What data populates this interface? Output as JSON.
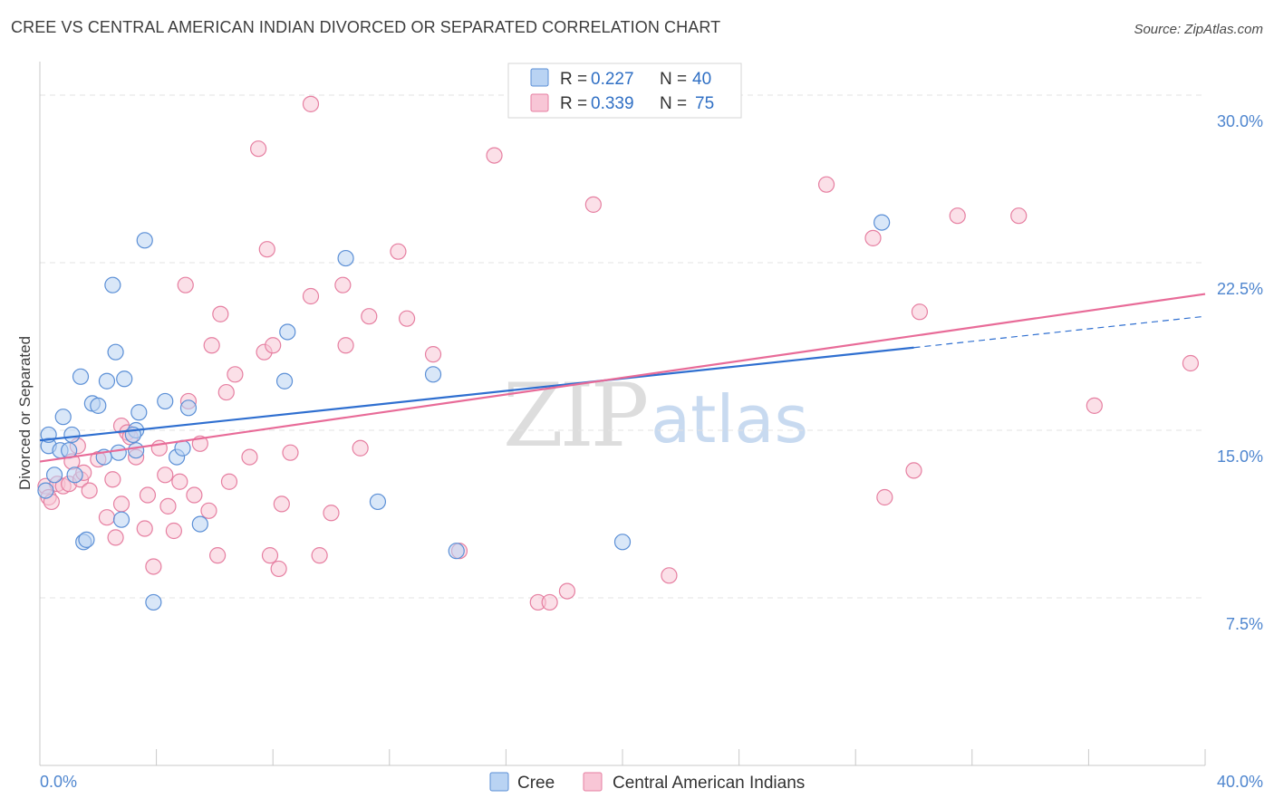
{
  "title": "CREE VS CENTRAL AMERICAN INDIAN DIVORCED OR SEPARATED CORRELATION CHART",
  "source": "Source: ZipAtlas.com",
  "colors": {
    "cree_fill": "#b9d3f3",
    "cree_stroke": "#5b8fd6",
    "cree_line": "#2f6fd0",
    "cai_fill": "#f8c6d6",
    "cai_stroke": "#e67fa1",
    "cai_line": "#e86b98",
    "tick_text": "#4f86cf",
    "grid": "#e3e3e3"
  },
  "legend": {
    "rows": [
      {
        "r_label": "R = ",
        "r_value": "0.227",
        "n_label": "N = ",
        "n_value": "40"
      },
      {
        "r_label": "R = ",
        "r_value": "0.339",
        "n_label": "N = ",
        "n_value": "75"
      }
    ]
  },
  "watermark": {
    "zip": "ZIP",
    "atlas": "atlas"
  },
  "chart_data": {
    "type": "scatter",
    "title": "CREE VS CENTRAL AMERICAN INDIAN DIVORCED OR SEPARATED CORRELATION CHART",
    "xlabel": "",
    "ylabel": "Divorced or Separated",
    "xlim": [
      0,
      40
    ],
    "ylim": [
      0,
      31.5
    ],
    "y_ticks": [
      7.5,
      15.0,
      22.5,
      30.0
    ],
    "y_tick_labels": [
      "7.5%",
      "15.0%",
      "22.5%",
      "30.0%"
    ],
    "x_tick_labels": [
      "0.0%",
      "40.0%"
    ],
    "grid": true,
    "series": [
      {
        "name": "Cree",
        "r": 0.227,
        "n": 40,
        "trend": {
          "x0": 0,
          "y0": 14.55,
          "x1": 30.0,
          "y1": 18.7,
          "dashed_to_x": 40,
          "dashed_to_y": 20.1
        },
        "points": [
          [
            0.3,
            14.3
          ],
          [
            0.3,
            14.8
          ],
          [
            0.5,
            13.0
          ],
          [
            0.7,
            14.1
          ],
          [
            0.8,
            15.6
          ],
          [
            1.0,
            14.1
          ],
          [
            1.1,
            14.8
          ],
          [
            1.2,
            13.0
          ],
          [
            1.4,
            17.4
          ],
          [
            1.5,
            10.0
          ],
          [
            1.6,
            10.1
          ],
          [
            1.8,
            16.2
          ],
          [
            2.0,
            16.1
          ],
          [
            2.2,
            13.8
          ],
          [
            2.3,
            17.2
          ],
          [
            2.5,
            21.5
          ],
          [
            2.6,
            18.5
          ],
          [
            2.7,
            14.0
          ],
          [
            2.8,
            11.0
          ],
          [
            2.9,
            17.3
          ],
          [
            3.3,
            14.1
          ],
          [
            3.3,
            15.0
          ],
          [
            3.4,
            15.8
          ],
          [
            3.6,
            23.5
          ],
          [
            3.9,
            7.3
          ],
          [
            4.3,
            16.3
          ],
          [
            4.7,
            13.8
          ],
          [
            4.9,
            14.2
          ],
          [
            5.1,
            16.0
          ],
          [
            5.5,
            10.8
          ],
          [
            8.4,
            17.2
          ],
          [
            8.5,
            19.4
          ],
          [
            10.5,
            22.7
          ],
          [
            11.6,
            11.8
          ],
          [
            13.5,
            17.5
          ],
          [
            14.3,
            9.6
          ],
          [
            20.0,
            10.0
          ],
          [
            28.9,
            24.3
          ],
          [
            3.2,
            14.8
          ],
          [
            0.2,
            12.3
          ]
        ]
      },
      {
        "name": "Central American Indians",
        "r": 0.339,
        "n": 75,
        "trend": {
          "x0": 0,
          "y0": 13.6,
          "x1": 40,
          "y1": 21.1
        },
        "points": [
          [
            0.2,
            12.5
          ],
          [
            0.3,
            12.0
          ],
          [
            0.4,
            11.8
          ],
          [
            0.6,
            12.6
          ],
          [
            0.8,
            12.5
          ],
          [
            1.0,
            12.6
          ],
          [
            1.1,
            13.6
          ],
          [
            1.3,
            14.3
          ],
          [
            1.4,
            12.8
          ],
          [
            1.5,
            13.1
          ],
          [
            1.7,
            12.3
          ],
          [
            2.0,
            13.7
          ],
          [
            2.3,
            11.1
          ],
          [
            2.5,
            12.8
          ],
          [
            2.6,
            10.2
          ],
          [
            2.8,
            11.7
          ],
          [
            2.8,
            15.2
          ],
          [
            3.0,
            14.9
          ],
          [
            3.1,
            14.7
          ],
          [
            3.3,
            13.8
          ],
          [
            3.6,
            10.6
          ],
          [
            3.7,
            12.1
          ],
          [
            3.9,
            8.9
          ],
          [
            4.1,
            14.2
          ],
          [
            4.3,
            13.0
          ],
          [
            4.4,
            11.6
          ],
          [
            4.6,
            10.5
          ],
          [
            4.8,
            12.7
          ],
          [
            5.0,
            21.5
          ],
          [
            5.1,
            16.3
          ],
          [
            5.3,
            12.1
          ],
          [
            5.5,
            14.4
          ],
          [
            5.8,
            11.4
          ],
          [
            5.9,
            18.8
          ],
          [
            6.1,
            9.4
          ],
          [
            6.2,
            20.2
          ],
          [
            6.4,
            16.7
          ],
          [
            6.5,
            12.7
          ],
          [
            6.7,
            17.5
          ],
          [
            7.2,
            13.8
          ],
          [
            7.5,
            27.6
          ],
          [
            7.7,
            18.5
          ],
          [
            7.8,
            23.1
          ],
          [
            7.9,
            9.4
          ],
          [
            8.0,
            18.8
          ],
          [
            8.2,
            8.8
          ],
          [
            8.3,
            11.7
          ],
          [
            8.6,
            14.0
          ],
          [
            9.3,
            29.6
          ],
          [
            9.3,
            21.0
          ],
          [
            9.6,
            9.4
          ],
          [
            10.0,
            11.3
          ],
          [
            10.4,
            21.5
          ],
          [
            10.5,
            18.8
          ],
          [
            11.0,
            14.2
          ],
          [
            11.3,
            20.1
          ],
          [
            12.3,
            23.0
          ],
          [
            12.6,
            20.0
          ],
          [
            13.5,
            18.4
          ],
          [
            14.4,
            9.6
          ],
          [
            15.6,
            27.3
          ],
          [
            17.1,
            7.3
          ],
          [
            17.5,
            7.3
          ],
          [
            18.1,
            7.8
          ],
          [
            19.0,
            25.1
          ],
          [
            21.6,
            8.5
          ],
          [
            27.0,
            26.0
          ],
          [
            28.6,
            23.6
          ],
          [
            29.0,
            12.0
          ],
          [
            30.0,
            13.2
          ],
          [
            30.2,
            20.3
          ],
          [
            31.5,
            24.6
          ],
          [
            33.6,
            24.6
          ],
          [
            36.2,
            16.1
          ],
          [
            39.5,
            18.0
          ]
        ]
      }
    ]
  },
  "bottom_legend": {
    "cree": "Cree",
    "cai": "Central American Indians"
  }
}
